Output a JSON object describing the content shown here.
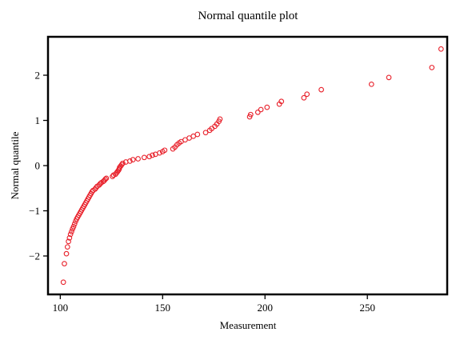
{
  "chart_data": {
    "type": "scatter",
    "title": "Normal quantile plot",
    "xlabel": "Measurement",
    "ylabel": "Normal quantile",
    "xlim": [
      94,
      289
    ],
    "ylim": [
      -2.85,
      2.85
    ],
    "xticks": [
      100,
      150,
      200,
      250
    ],
    "yticks": [
      -2,
      -1,
      0,
      1,
      2
    ],
    "grid": false,
    "marker_color": "#e8202a",
    "marker": "open-circle",
    "points": [
      [
        101.5,
        -2.58
      ],
      [
        102.0,
        -2.17
      ],
      [
        103.0,
        -1.95
      ],
      [
        103.5,
        -1.8
      ],
      [
        104.0,
        -1.68
      ],
      [
        104.5,
        -1.6
      ],
      [
        105.0,
        -1.52
      ],
      [
        105.5,
        -1.46
      ],
      [
        106.0,
        -1.4
      ],
      [
        106.5,
        -1.35
      ],
      [
        107.0,
        -1.29
      ],
      [
        107.5,
        -1.23
      ],
      [
        108.0,
        -1.18
      ],
      [
        108.5,
        -1.14
      ],
      [
        109.0,
        -1.1
      ],
      [
        109.5,
        -1.06
      ],
      [
        110.0,
        -1.02
      ],
      [
        110.5,
        -0.98
      ],
      [
        111.0,
        -0.94
      ],
      [
        111.5,
        -0.9
      ],
      [
        112.0,
        -0.86
      ],
      [
        112.5,
        -0.82
      ],
      [
        113.0,
        -0.78
      ],
      [
        113.5,
        -0.74
      ],
      [
        114.0,
        -0.7
      ],
      [
        114.5,
        -0.66
      ],
      [
        115.0,
        -0.62
      ],
      [
        115.5,
        -0.58
      ],
      [
        116.0,
        -0.55
      ],
      [
        117.0,
        -0.52
      ],
      [
        117.5,
        -0.49
      ],
      [
        118.0,
        -0.46
      ],
      [
        119.0,
        -0.43
      ],
      [
        119.5,
        -0.4
      ],
      [
        120.0,
        -0.38
      ],
      [
        121.0,
        -0.35
      ],
      [
        121.5,
        -0.33
      ],
      [
        122.0,
        -0.3
      ],
      [
        122.5,
        -0.28
      ],
      [
        125.5,
        -0.24
      ],
      [
        126.0,
        -0.21
      ],
      [
        127.0,
        -0.19
      ],
      [
        127.5,
        -0.16
      ],
      [
        128.0,
        -0.13
      ],
      [
        128.5,
        -0.1
      ],
      [
        128.8,
        -0.07
      ],
      [
        129.0,
        -0.04
      ],
      [
        129.5,
        -0.01
      ],
      [
        130.0,
        0.02
      ],
      [
        130.5,
        0.05
      ],
      [
        132.0,
        0.08
      ],
      [
        134.0,
        0.1
      ],
      [
        135.5,
        0.13
      ],
      [
        138.0,
        0.15
      ],
      [
        141.0,
        0.18
      ],
      [
        143.5,
        0.2
      ],
      [
        145.0,
        0.23
      ],
      [
        146.5,
        0.25
      ],
      [
        148.5,
        0.28
      ],
      [
        150.0,
        0.31
      ],
      [
        151.0,
        0.34
      ],
      [
        155.0,
        0.37
      ],
      [
        156.0,
        0.41
      ],
      [
        157.0,
        0.46
      ],
      [
        158.0,
        0.5
      ],
      [
        159.0,
        0.53
      ],
      [
        161.0,
        0.57
      ],
      [
        163.0,
        0.61
      ],
      [
        165.0,
        0.65
      ],
      [
        167.0,
        0.69
      ],
      [
        171.0,
        0.73
      ],
      [
        173.0,
        0.78
      ],
      [
        174.0,
        0.82
      ],
      [
        175.5,
        0.87
      ],
      [
        176.5,
        0.92
      ],
      [
        177.5,
        0.98
      ],
      [
        178.0,
        1.03
      ],
      [
        192.5,
        1.08
      ],
      [
        193.0,
        1.13
      ],
      [
        196.5,
        1.18
      ],
      [
        198.0,
        1.24
      ],
      [
        201.0,
        1.29
      ],
      [
        207.0,
        1.36
      ],
      [
        208.0,
        1.42
      ],
      [
        219.0,
        1.5
      ],
      [
        220.5,
        1.58
      ],
      [
        227.5,
        1.68
      ],
      [
        252.0,
        1.8
      ],
      [
        260.5,
        1.95
      ],
      [
        281.5,
        2.17
      ],
      [
        286.0,
        2.58
      ]
    ]
  }
}
